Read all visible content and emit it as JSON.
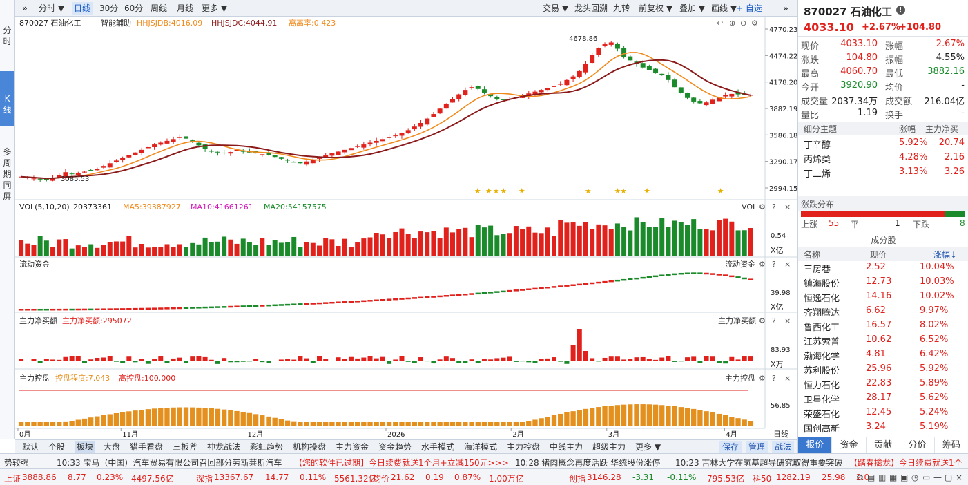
{
  "leftbar": {
    "items": [
      "分",
      "时",
      "K",
      "线",
      "多",
      "周",
      "期",
      "同",
      "屏"
    ]
  },
  "topbar": {
    "left": [
      "分时 ▼",
      "日线",
      "30分",
      "60分",
      "周线",
      "月线",
      "更多 ▼"
    ],
    "right": [
      "交易 ▼",
      "龙头回溯",
      "九转",
      "前复权 ▼",
      "叠加 ▼",
      "画线 ▼",
      "+ 自选"
    ],
    "collapse": "»",
    "expand": "»"
  },
  "chart": {
    "header_name": "870027 石油化工",
    "assist": "智能辅助",
    "hhjsjdb": "HHJSJDB:4016.09",
    "hhjsjdc": "HHJSJDC:4044.91",
    "deviation": "离离率:0.423",
    "y_ticks": [
      "4770.23",
      "4474.22",
      "4178.20",
      "3882.19",
      "3586.18",
      "3290.17",
      "2994.15"
    ],
    "high_label": "4678.86",
    "low_label": "3085.53",
    "x_ticks": [
      "0月",
      "11月",
      "12月",
      "2026",
      "2月",
      "3月",
      "4月"
    ],
    "vol_label": "VOL(5,10,20)",
    "vol_value": "20373361",
    "ma5": "MA5:39387927",
    "ma10": "MA10:41661261",
    "ma20": "MA20:54157575",
    "vol_right": "VOL",
    "vol_axis": "0.54",
    "vol_unit": "X亿",
    "flow_label": "流动资金",
    "flow_right": "流动资金",
    "flow_axis": "39.98",
    "flow_unit": "X亿",
    "net_label": "主力净买额",
    "net_value": "主力净买额:295072",
    "net_right": "主力净买额",
    "net_axis": "83.93",
    "net_unit": "X万",
    "ctrl_label": "主力控盘",
    "ctrl_degree": "控盘程度:7.043",
    "ctrl_high": "高控盘:100.000",
    "ctrl_right": "主力控盘",
    "ctrl_axis": "56.85",
    "period": "日线"
  },
  "chart_data": {
    "type": "candlestick",
    "title": "870027 石油化工",
    "ylim": [
      2994.15,
      4770.23
    ],
    "x_ticks": [
      "0月",
      "11月",
      "12月",
      "2026",
      "2月",
      "3月",
      "4月"
    ],
    "close_series": [
      3120,
      3110,
      3100,
      3090,
      3085,
      3110,
      3140,
      3170,
      3150,
      3160,
      3175,
      3190,
      3210,
      3240,
      3270,
      3300,
      3330,
      3360,
      3390,
      3420,
      3450,
      3480,
      3500,
      3520,
      3540,
      3560,
      3545,
      3510,
      3470,
      3430,
      3400,
      3390,
      3380,
      3395,
      3420,
      3400,
      3390,
      3380,
      3370,
      3360,
      3340,
      3320,
      3300,
      3280,
      3270,
      3290,
      3310,
      3330,
      3360,
      3380,
      3400,
      3420,
      3440,
      3460,
      3480,
      3500,
      3520,
      3540,
      3560,
      3580,
      3610,
      3640,
      3680,
      3720,
      3770,
      3820,
      3880,
      3930,
      3990,
      4040,
      4090,
      4120,
      4100,
      4060,
      4020,
      3990,
      3980,
      3990,
      4010,
      4030,
      4050,
      4070,
      4090,
      4110,
      4130,
      4160,
      4200,
      4240,
      4300,
      4380,
      4480,
      4560,
      4600,
      4620,
      4550,
      4460,
      4420,
      4380,
      4340,
      4310,
      4280,
      4260,
      4200,
      4120,
      4060,
      4000,
      3960,
      3940,
      3950,
      3980,
      4010,
      4030,
      4045,
      4040,
      4035,
      4033
    ]
  },
  "right": {
    "title": "870027 石油化工",
    "price": "4033.10",
    "change_pct": "+2.67%",
    "change": "+104.80",
    "stats": [
      [
        "现价",
        "4033.10",
        "涨幅",
        "2.67%"
      ],
      [
        "涨跌",
        "104.80",
        "振幅",
        "4.55%"
      ],
      [
        "最高",
        "4060.70",
        "最低",
        "3882.16"
      ],
      [
        "今开",
        "3920.90",
        "均价",
        "-"
      ],
      [
        "成交量",
        "2037.34万",
        "成交额",
        "216.04亿"
      ],
      [
        "量比",
        "1.19",
        "换手",
        "-"
      ]
    ],
    "theme_header": [
      "细分主题",
      "涨幅",
      "主力净买"
    ],
    "themes": [
      [
        "丁辛醇",
        "5.92%",
        "20.74"
      ],
      [
        "丙烯类",
        "4.28%",
        "2.16"
      ],
      [
        "丁二烯",
        "3.13%",
        "3.26"
      ]
    ],
    "dist_title": "涨跌分布",
    "dist": {
      "up_label": "上涨",
      "up": "55",
      "flat_label": "平",
      "flat": "1",
      "down_label": "下跌",
      "down": "8"
    },
    "stocks_title": "成分股",
    "stocks_header": [
      "名称",
      "现价",
      "涨幅↓"
    ],
    "stocks": [
      [
        "三房巷",
        "2.52",
        "10.04%"
      ],
      [
        "镇海股份",
        "12.73",
        "10.03%"
      ],
      [
        "恒逸石化",
        "14.16",
        "10.02%"
      ],
      [
        "齐翔腾达",
        "6.62",
        "9.97%"
      ],
      [
        "鲁西化工",
        "16.57",
        "8.02%"
      ],
      [
        "江苏索普",
        "10.62",
        "6.52%"
      ],
      [
        "渤海化学",
        "4.81",
        "6.42%"
      ],
      [
        "苏利股份",
        "25.96",
        "5.92%"
      ],
      [
        "恒力石化",
        "22.83",
        "5.89%"
      ],
      [
        "卫星化学",
        "28.17",
        "5.62%"
      ],
      [
        "荣盛石化",
        "12.45",
        "5.24%"
      ],
      [
        "国创高新",
        "3.24",
        "5.19%"
      ]
    ],
    "tabs": [
      "报价",
      "资金",
      "贡献",
      "分价",
      "筹码"
    ]
  },
  "bottomtabs": [
    "默认",
    "个股",
    "板块",
    "大盘",
    "猎手看盘",
    "三板斧",
    "神龙战法",
    "彩虹趋势",
    "机构操盘",
    "主力资金",
    "资金趋势",
    "水手模式",
    "海洋模式",
    "主力控盘",
    "中线主力",
    "超级主力",
    "更多 ▼"
  ],
  "bottomright": [
    "保存",
    "管理",
    "战法"
  ],
  "ticker": [
    "势较强",
    "10:33 宝马（中国）汽车贸易有限公司召回部分劳斯莱斯汽车",
    "【您的软件已过期】今日续费就送1个月+立减150元>>>",
    "10:28 猪肉概念再度活跃 华统股份涨停",
    "10:23 吉林大学在氢基超导研究取得重要突破",
    "【踏春擒龙】今日续费就送1个"
  ],
  "indexbar": [
    [
      "上证",
      "3888.86",
      "8.77",
      "0.23%",
      "4497.56亿"
    ],
    [
      "深指",
      "13367.67",
      "14.77",
      "0.11%",
      "5561.32亿"
    ],
    [
      "均价",
      "21.62",
      "0.19",
      "0.87%",
      "1.00万亿"
    ],
    [
      "创指",
      "3146.28",
      "-3.31",
      "-0.11%",
      "795.53亿"
    ],
    [
      "科50",
      "1282.19",
      "25.98",
      "2.0"
    ]
  ],
  "colors": {
    "up": "#e0211c",
    "down": "#1a8a2a",
    "ma_short": "#f08a1c",
    "ma_long": "#8b1a1a",
    "accent": "#3a78d0",
    "ctrl": "#e3901f"
  }
}
